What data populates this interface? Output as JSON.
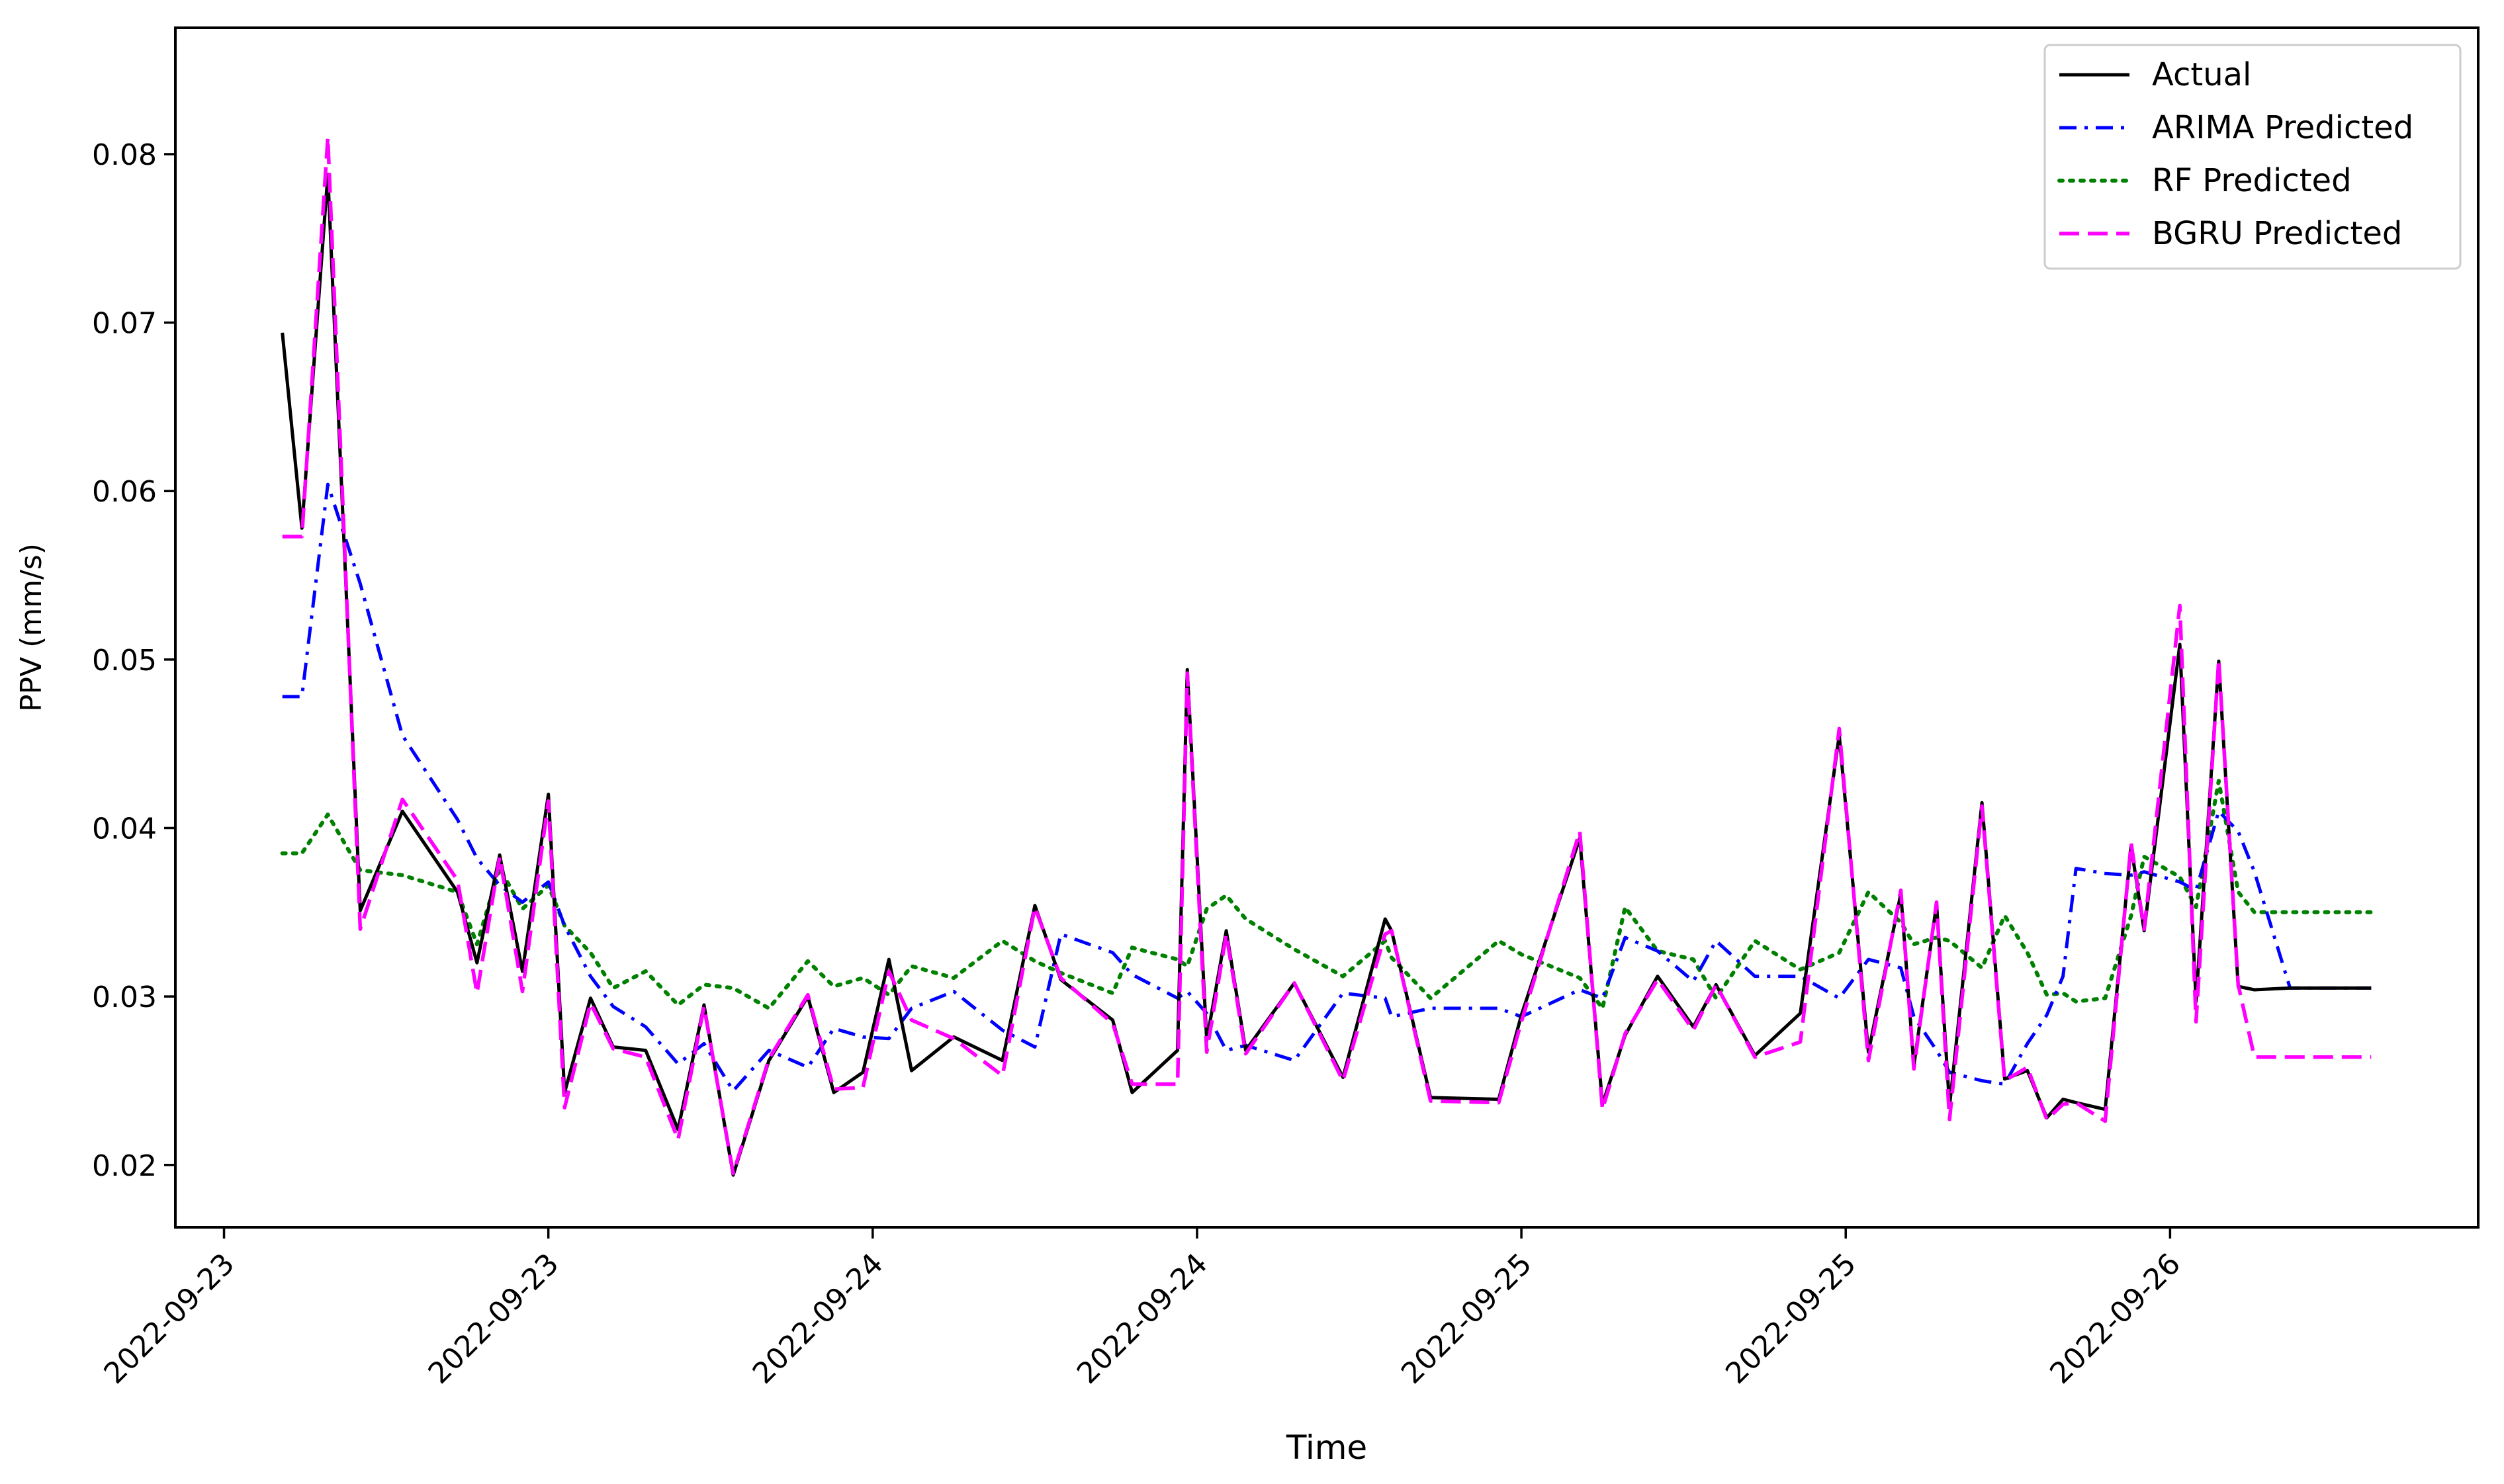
{
  "chart_data": {
    "type": "line",
    "title": "",
    "xlabel": "Time",
    "ylabel": "PPV (mm/s)",
    "xlim": [
      -0.15,
      6.95
    ],
    "ylim": [
      0.0163,
      0.0875
    ],
    "x_tick_labels": [
      "2022-09-23",
      "2022-09-23",
      "2022-09-24",
      "2022-09-24",
      "2022-09-25",
      "2022-09-25",
      "2022-09-26"
    ],
    "y_ticks": [
      0.02,
      0.03,
      0.04,
      0.05,
      0.06,
      0.07,
      0.08
    ],
    "grid": false,
    "legend_position": "upper right",
    "x": [
      0.18,
      0.24,
      0.32,
      0.42,
      0.55,
      0.72,
      0.78,
      0.85,
      0.92,
      1.0,
      1.05,
      1.13,
      1.2,
      1.3,
      1.4,
      1.48,
      1.57,
      1.68,
      1.8,
      1.88,
      1.97,
      2.05,
      2.12,
      2.25,
      2.4,
      2.5,
      2.58,
      2.74,
      2.8,
      2.94,
      2.97,
      3.03,
      3.09,
      3.15,
      3.3,
      3.45,
      3.58,
      3.6,
      3.72,
      3.93,
      4.0,
      4.18,
      4.25,
      4.32,
      4.42,
      4.53,
      4.6,
      4.72,
      4.86,
      4.98,
      5.07,
      5.17,
      5.21,
      5.28,
      5.32,
      5.42,
      5.49,
      5.56,
      5.62,
      5.67,
      5.71,
      5.8,
      5.88,
      5.92,
      6.03,
      6.08,
      6.15,
      6.21,
      6.26,
      6.37,
      6.45,
      6.52,
      6.62
    ],
    "series": [
      {
        "name": "Actual",
        "color": "#000000",
        "dash": "solid",
        "values": [
          0.0694,
          0.0578,
          0.0788,
          0.0351,
          0.041,
          0.0362,
          0.032,
          0.0384,
          0.0315,
          0.042,
          0.0243,
          0.0299,
          0.027,
          0.0268,
          0.0221,
          0.0295,
          0.0194,
          0.0262,
          0.03,
          0.0243,
          0.0255,
          0.0322,
          0.0256,
          0.0276,
          0.0262,
          0.0354,
          0.031,
          0.0286,
          0.0243,
          0.0268,
          0.0494,
          0.0274,
          0.0339,
          0.0268,
          0.0308,
          0.0252,
          0.0346,
          0.0339,
          0.024,
          0.0239,
          0.0289,
          0.0394,
          0.0236,
          0.0277,
          0.0312,
          0.0282,
          0.0307,
          0.0265,
          0.029,
          0.0455,
          0.0267,
          0.0361,
          0.0259,
          0.0355,
          0.0235,
          0.0415,
          0.0251,
          0.0256,
          0.0228,
          0.0239,
          0.0237,
          0.0233,
          0.0389,
          0.0339,
          0.0509,
          0.0297,
          0.0499,
          0.0306,
          0.0304,
          0.0305,
          0.0305,
          0.0305,
          0.0305
        ]
      },
      {
        "name": "ARIMA Predicted",
        "color": "#0000ff",
        "dash": "dashdot",
        "values": [
          0.0478,
          0.0478,
          0.0604,
          0.0545,
          0.0455,
          0.0405,
          0.0382,
          0.0366,
          0.0356,
          0.0368,
          0.0342,
          0.0312,
          0.0294,
          0.0282,
          0.026,
          0.0272,
          0.0244,
          0.0268,
          0.0258,
          0.0281,
          0.0276,
          0.0275,
          0.0293,
          0.0303,
          0.028,
          0.027,
          0.0337,
          0.0326,
          0.0313,
          0.0299,
          0.0303,
          0.029,
          0.0268,
          0.0271,
          0.0262,
          0.0302,
          0.0299,
          0.0288,
          0.0293,
          0.0293,
          0.0288,
          0.0304,
          0.0299,
          0.0335,
          0.0327,
          0.0309,
          0.0333,
          0.0312,
          0.0312,
          0.0299,
          0.0322,
          0.0317,
          0.0288,
          0.0268,
          0.0255,
          0.025,
          0.0248,
          0.0272,
          0.0289,
          0.0312,
          0.0376,
          0.0373,
          0.0372,
          0.0374,
          0.0368,
          0.0363,
          0.041,
          0.0398,
          0.0374,
          0.0305,
          0.0305,
          0.0305,
          0.0305
        ]
      },
      {
        "name": "RF Predicted",
        "color": "#008000",
        "dash": "dotted",
        "values": [
          0.0385,
          0.0385,
          0.0408,
          0.0375,
          0.0372,
          0.0362,
          0.0331,
          0.0376,
          0.0352,
          0.0366,
          0.0342,
          0.0326,
          0.0305,
          0.0315,
          0.0295,
          0.0307,
          0.0305,
          0.0293,
          0.0321,
          0.0306,
          0.0311,
          0.0301,
          0.0318,
          0.0311,
          0.0333,
          0.0321,
          0.0314,
          0.0302,
          0.0329,
          0.0322,
          0.0318,
          0.0352,
          0.036,
          0.0346,
          0.0328,
          0.0312,
          0.0333,
          0.0323,
          0.0299,
          0.0333,
          0.0325,
          0.0311,
          0.0293,
          0.0353,
          0.0327,
          0.0322,
          0.0299,
          0.0333,
          0.0316,
          0.0326,
          0.0362,
          0.0344,
          0.0331,
          0.0335,
          0.0333,
          0.0317,
          0.0348,
          0.0326,
          0.0301,
          0.0302,
          0.0297,
          0.0299,
          0.0348,
          0.0383,
          0.0371,
          0.0353,
          0.0428,
          0.0362,
          0.035,
          0.035,
          0.035,
          0.035,
          0.035
        ]
      },
      {
        "name": "BGRU Predicted",
        "color": "#ff00ff",
        "dash": "dashed",
        "values": [
          0.0573,
          0.0573,
          0.081,
          0.034,
          0.0417,
          0.0369,
          0.0302,
          0.0383,
          0.0303,
          0.0416,
          0.0234,
          0.0296,
          0.0269,
          0.0264,
          0.0215,
          0.0294,
          0.0195,
          0.0263,
          0.0301,
          0.0245,
          0.0246,
          0.0315,
          0.0286,
          0.0275,
          0.0253,
          0.0353,
          0.0311,
          0.0284,
          0.0248,
          0.0248,
          0.0492,
          0.0267,
          0.0337,
          0.0266,
          0.0308,
          0.025,
          0.0337,
          0.0339,
          0.0238,
          0.0237,
          0.0285,
          0.0398,
          0.0233,
          0.0278,
          0.031,
          0.028,
          0.0307,
          0.0264,
          0.0273,
          0.0459,
          0.0262,
          0.0363,
          0.0257,
          0.0356,
          0.0227,
          0.0413,
          0.025,
          0.0258,
          0.0227,
          0.0236,
          0.0237,
          0.0226,
          0.0391,
          0.034,
          0.0532,
          0.0285,
          0.05,
          0.0307,
          0.0264,
          0.0264,
          0.0264,
          0.0264,
          0.0264
        ]
      }
    ]
  }
}
